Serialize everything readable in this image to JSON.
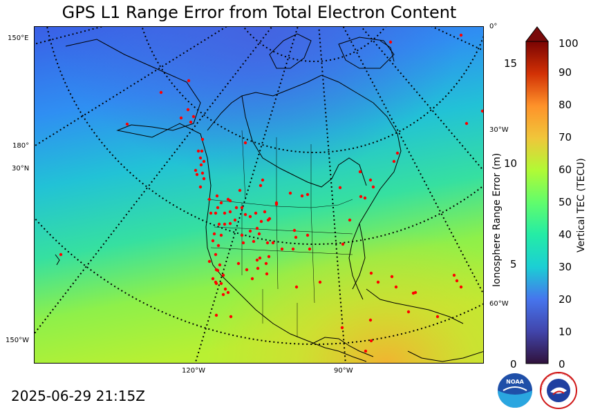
{
  "title": "GPS L1 Range Error from Total Electron Content",
  "timestamp": "2025-06-29 21:15Z",
  "map": {
    "left_labels": [
      "150°E",
      "180°",
      "30°N",
      "150°W"
    ],
    "right_labels": [
      "0°",
      "30°W",
      "60°W"
    ],
    "bottom_labels": [
      "120°W",
      "90°W"
    ],
    "station_color": "#ff0000",
    "station_count": 120
  },
  "colorbar": {
    "left_axis_title": "Ionosphere Range Error (m)",
    "left_ticks": [
      "0",
      "5",
      "10",
      "15"
    ],
    "right_axis_title": "Vertical TEC (TECU)",
    "right_ticks": [
      "0",
      "10",
      "20",
      "30",
      "40",
      "50",
      "60",
      "70",
      "80",
      "90",
      "100"
    ],
    "extend_color": "#7a0a0a"
  },
  "logos": {
    "noaa_label": "NOAA",
    "nws_label": "NATIONAL WEATHER SERVICE"
  }
}
